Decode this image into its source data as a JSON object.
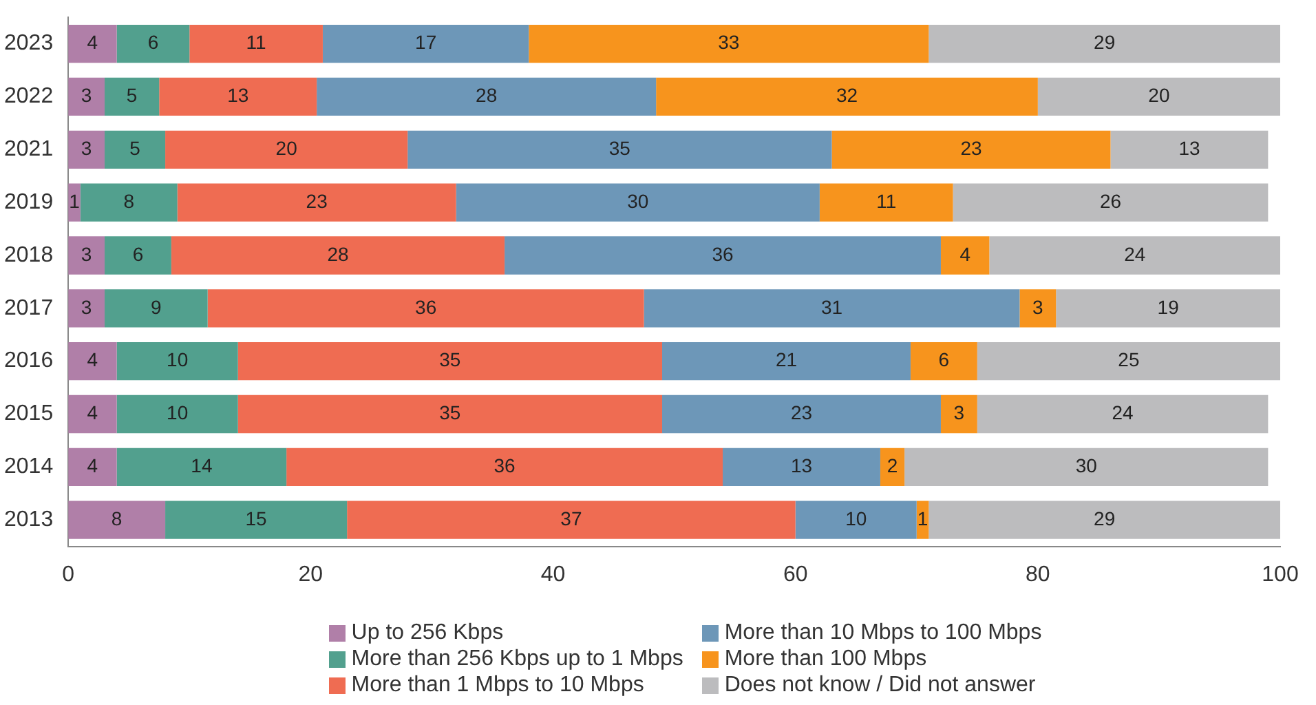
{
  "chart_data": {
    "type": "bar",
    "orientation": "horizontal",
    "stacked": true,
    "categories": [
      "2023",
      "2022",
      "2021",
      "2019",
      "2018",
      "2017",
      "2016",
      "2015",
      "2014",
      "2013"
    ],
    "xlim": [
      0,
      100
    ],
    "xticks": [
      0,
      20,
      40,
      60,
      80,
      100
    ],
    "grid": false,
    "legend": "bottom",
    "series": [
      {
        "name": "Up to 256 Kbps",
        "color": "#b07fa8",
        "values": [
          4,
          3,
          3,
          1,
          3,
          3,
          4,
          4,
          4,
          8
        ],
        "value_labels": [
          "4",
          "3",
          "3",
          "1",
          "3",
          "3",
          "4",
          "4",
          "4",
          "8"
        ]
      },
      {
        "name": "More than 256 Kbps up to 1 Mbps",
        "color": "#52a08e",
        "values": [
          6,
          4.5,
          5,
          8,
          5.5,
          8.5,
          10,
          10,
          14,
          15
        ],
        "value_labels": [
          "6",
          "5",
          "5",
          "8",
          "6",
          "9",
          "10",
          "10",
          "14",
          "15"
        ]
      },
      {
        "name": "More than 1 Mbps to 10 Mbps",
        "color": "#ef6c52",
        "values": [
          11,
          13,
          20,
          23,
          27.5,
          36,
          35,
          35,
          36,
          37
        ],
        "value_labels": [
          "11",
          "13",
          "20",
          "23",
          "28",
          "36",
          "35",
          "35",
          "36",
          "37"
        ]
      },
      {
        "name": "More than 10 Mbps to 100 Mbps",
        "color": "#6d97b8",
        "values": [
          17,
          28,
          35,
          30,
          36,
          31,
          20.5,
          23,
          13,
          10
        ],
        "value_labels": [
          "17",
          "28",
          "35",
          "30",
          "36",
          "31",
          "21",
          "23",
          "13",
          "10"
        ]
      },
      {
        "name": "More than 100 Mbps",
        "color": "#f7941d",
        "values": [
          33,
          31.5,
          23,
          11,
          4,
          3,
          5.5,
          3,
          2,
          1
        ],
        "value_labels": [
          "33",
          "32",
          "23",
          "11",
          "4",
          "3",
          "6",
          "3",
          "2",
          "1"
        ]
      },
      {
        "name": "Does not know / Did not answer",
        "color": "#bcbcbe",
        "values": [
          29,
          20,
          13,
          26,
          24,
          18.5,
          25,
          24,
          30,
          29
        ],
        "value_labels": [
          "29",
          "20",
          "13",
          "26",
          "24",
          "19",
          "25",
          "24",
          "30",
          "29"
        ]
      }
    ]
  }
}
